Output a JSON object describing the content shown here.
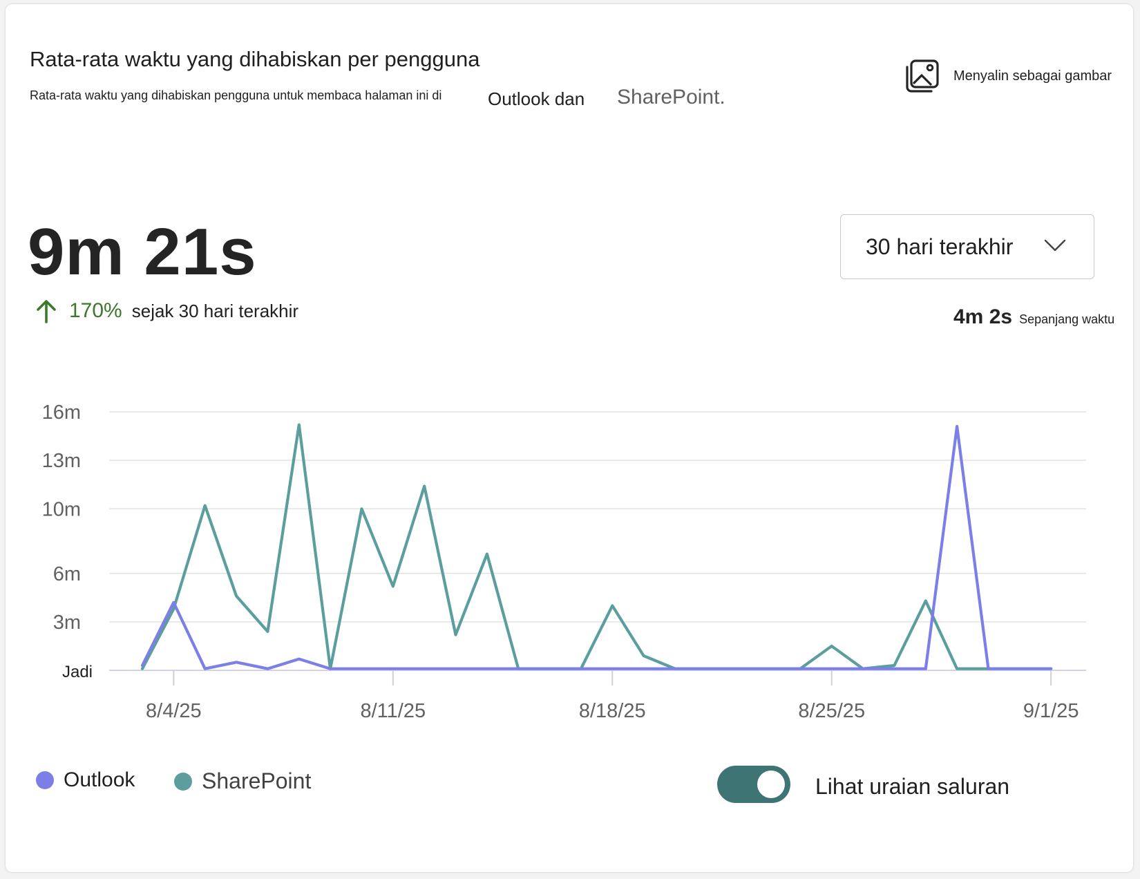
{
  "header": {
    "title": "Rata-rata waktu yang dihabiskan per pengguna",
    "subtitle": "Rata-rata waktu yang dihabiskan pengguna untuk membaca halaman ini di",
    "subtitle_outlook": "Outlook dan",
    "subtitle_sharepoint": "SharePoint.",
    "copy_button_label": "Menyalin sebagai gambar",
    "copy_icon": "image-icon"
  },
  "summary": {
    "value": "9m 21s",
    "change_pct": "170%",
    "change_label": "sejak 30 hari terakhir",
    "change_color": "#3b7a2a",
    "change_icon": "arrow-up-icon",
    "alltime_value": "4m 2s",
    "alltime_label": "Sepanjang waktu"
  },
  "range_select": {
    "value": "30 hari terakhir",
    "icon": "chevron-down-icon"
  },
  "chart_data": {
    "type": "line",
    "y_tick_labels": [
      "Jadi",
      "3m",
      "6m",
      "10m",
      "13m",
      "16m"
    ],
    "y_tick_values": [
      0,
      3,
      6,
      10,
      13,
      16
    ],
    "ylim": [
      0,
      16
    ],
    "x_tick_labels": [
      "8/4/25",
      "8/11/25",
      "8/18/25",
      "8/25/25",
      "9/1/25"
    ],
    "x": [
      "8/3/25",
      "8/4/25",
      "8/5/25",
      "8/6/25",
      "8/7/25",
      "8/8/25",
      "8/9/25",
      "8/10/25",
      "8/11/25",
      "8/12/25",
      "8/13/25",
      "8/14/25",
      "8/15/25",
      "8/16/25",
      "8/17/25",
      "8/18/25",
      "8/19/25",
      "8/20/25",
      "8/21/25",
      "8/22/25",
      "8/23/25",
      "8/24/25",
      "8/25/25",
      "8/26/25",
      "8/27/25",
      "8/28/25",
      "8/29/25",
      "8/30/25",
      "8/31/25",
      "9/1/25"
    ],
    "grid": true,
    "series": [
      {
        "name": "Outlook",
        "color": "#7b7fe6",
        "values": [
          0.3,
          4.2,
          0.1,
          0.5,
          0.1,
          0.7,
          0.1,
          0.1,
          0.1,
          0.1,
          0.1,
          0.1,
          0.1,
          0.1,
          0.1,
          0.1,
          0.1,
          0.1,
          0.1,
          0.1,
          0.1,
          0.1,
          0.1,
          0.1,
          0.1,
          0.1,
          15.1,
          0.1,
          0.1,
          0.1
        ]
      },
      {
        "name": "SharePoint",
        "color": "#5c9e9e",
        "values": [
          0.1,
          3.8,
          10.2,
          4.6,
          2.4,
          15.2,
          0.1,
          10.0,
          5.2,
          11.4,
          2.2,
          7.2,
          0.1,
          0.1,
          0.1,
          4.0,
          0.9,
          0.1,
          0.1,
          0.1,
          0.1,
          0.1,
          1.5,
          0.1,
          0.3,
          4.3,
          0.1,
          0.1,
          0.1,
          0.1
        ]
      }
    ]
  },
  "legend": {
    "toggle_label": "Lihat uraian saluran",
    "toggle_on": true,
    "toggle_color": "#3e7474"
  }
}
